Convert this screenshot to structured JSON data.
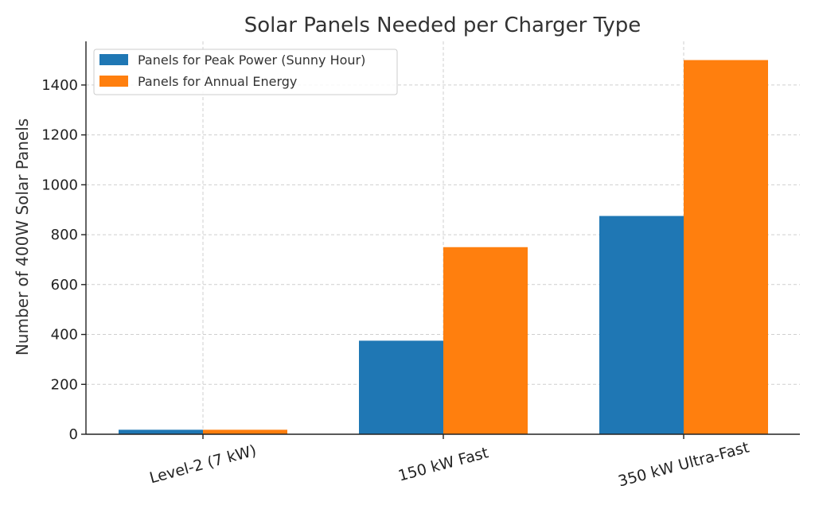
{
  "chart_data": {
    "type": "bar",
    "title": "Solar Panels Needed per Charger Type",
    "xlabel": "",
    "ylabel": "Number of 400W Solar Panels",
    "categories": [
      "Level-2 (7 kW)",
      "150 kW Fast",
      "350 kW Ultra-Fast"
    ],
    "series": [
      {
        "name": "Panels for Peak Power (Sunny Hour)",
        "values": [
          18,
          375,
          875
        ]
      },
      {
        "name": "Panels for Annual Energy",
        "values": [
          18,
          750,
          1500
        ]
      }
    ],
    "ylim": [
      0,
      1575
    ],
    "yticks": [
      0,
      200,
      400,
      600,
      800,
      1000,
      1200,
      1400
    ],
    "grid": true,
    "legend": "top-left",
    "colors": [
      "#1f77b4",
      "#ff7f0e"
    ]
  }
}
